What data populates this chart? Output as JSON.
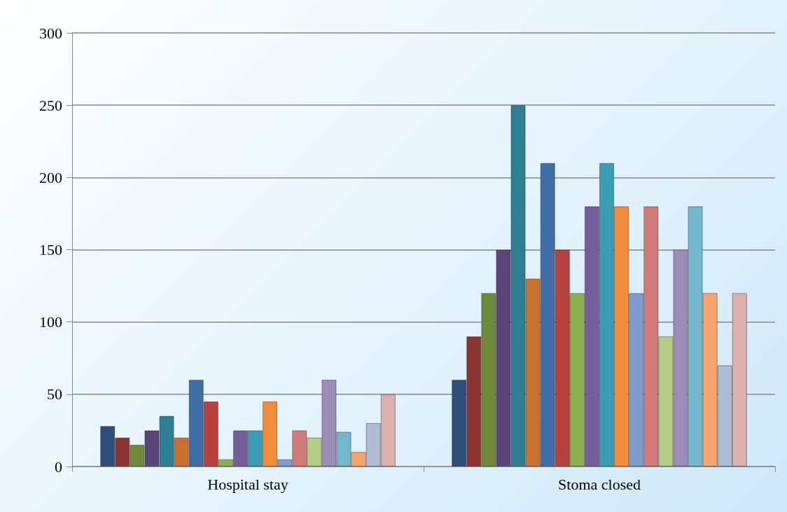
{
  "chart_data": {
    "type": "bar",
    "categories": [
      "Hospital stay",
      "Stoma closed"
    ],
    "series": [
      {
        "color": "#2e4f7c",
        "values": [
          28,
          60
        ]
      },
      {
        "color": "#8c3432",
        "values": [
          20,
          90
        ]
      },
      {
        "color": "#6f8a3a",
        "values": [
          15,
          120
        ]
      },
      {
        "color": "#5b4579",
        "values": [
          25,
          150
        ]
      },
      {
        "color": "#2f7f94",
        "values": [
          35,
          250
        ]
      },
      {
        "color": "#c8712e",
        "values": [
          20,
          130
        ]
      },
      {
        "color": "#3f6ea6",
        "values": [
          60,
          210
        ]
      },
      {
        "color": "#b5423f",
        "values": [
          45,
          150
        ]
      },
      {
        "color": "#8fb04e",
        "values": [
          5,
          120
        ]
      },
      {
        "color": "#765e9a",
        "values": [
          25,
          180
        ]
      },
      {
        "color": "#3a9db6",
        "values": [
          25,
          210
        ]
      },
      {
        "color": "#f08c3a",
        "values": [
          45,
          180
        ]
      },
      {
        "color": "#7f9dcc",
        "values": [
          5,
          120
        ]
      },
      {
        "color": "#d07b79",
        "values": [
          25,
          180
        ]
      },
      {
        "color": "#b4cd85",
        "values": [
          20,
          90
        ]
      },
      {
        "color": "#9c8cb8",
        "values": [
          60,
          150
        ]
      },
      {
        "color": "#72b7cc",
        "values": [
          24,
          180
        ]
      },
      {
        "color": "#f7a56c",
        "values": [
          10,
          120
        ]
      },
      {
        "color": "#aebcd6",
        "values": [
          30,
          70
        ]
      },
      {
        "color": "#dbb1ae",
        "values": [
          50,
          120
        ]
      }
    ],
    "ylim": [
      0,
      300
    ],
    "yticks": [
      0,
      50,
      100,
      150,
      200,
      250,
      300
    ],
    "grid": "y"
  }
}
